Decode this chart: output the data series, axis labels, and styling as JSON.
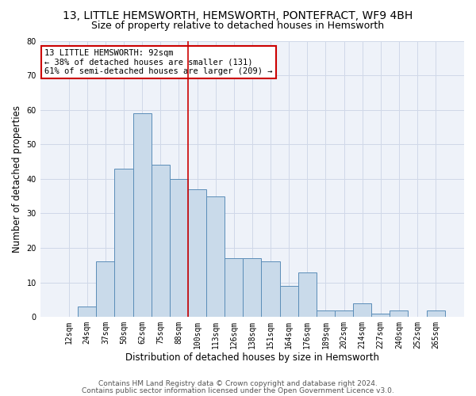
{
  "title": "13, LITTLE HEMSWORTH, HEMSWORTH, PONTEFRACT, WF9 4BH",
  "subtitle": "Size of property relative to detached houses in Hemsworth",
  "xlabel": "Distribution of detached houses by size in Hemsworth",
  "ylabel": "Number of detached properties",
  "categories": [
    "12sqm",
    "24sqm",
    "37sqm",
    "50sqm",
    "62sqm",
    "75sqm",
    "88sqm",
    "100sqm",
    "113sqm",
    "126sqm",
    "138sqm",
    "151sqm",
    "164sqm",
    "176sqm",
    "189sqm",
    "202sqm",
    "214sqm",
    "227sqm",
    "240sqm",
    "252sqm",
    "265sqm"
  ],
  "values": [
    0,
    3,
    16,
    43,
    59,
    44,
    40,
    37,
    35,
    17,
    17,
    16,
    9,
    13,
    2,
    2,
    4,
    1,
    2,
    0,
    2
  ],
  "bar_color": "#c9daea",
  "bar_edge_color": "#5b8db8",
  "annotation_text": "13 LITTLE HEMSWORTH: 92sqm\n← 38% of detached houses are smaller (131)\n61% of semi-detached houses are larger (209) →",
  "annotation_box_color": "#ffffff",
  "annotation_box_edge": "#cc0000",
  "annotation_text_color": "#000000",
  "vline_color": "#cc0000",
  "vline_x": 6.5,
  "ylim": [
    0,
    80
  ],
  "yticks": [
    0,
    10,
    20,
    30,
    40,
    50,
    60,
    70,
    80
  ],
  "grid_color": "#d0d8e8",
  "background_color": "#eef2f9",
  "footer_line1": "Contains HM Land Registry data © Crown copyright and database right 2024.",
  "footer_line2": "Contains public sector information licensed under the Open Government Licence v3.0.",
  "title_fontsize": 10,
  "subtitle_fontsize": 9,
  "xlabel_fontsize": 8.5,
  "ylabel_fontsize": 8.5,
  "tick_fontsize": 7,
  "annotation_fontsize": 7.5,
  "footer_fontsize": 6.5
}
